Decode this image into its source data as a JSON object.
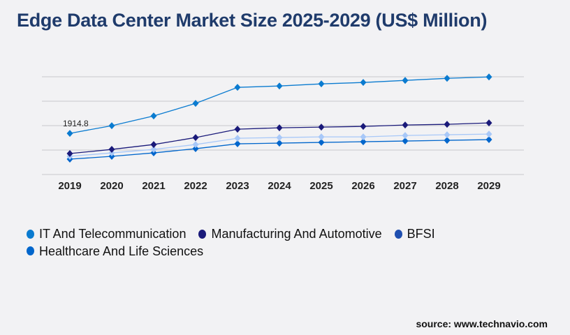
{
  "title": "Edge Data Center Market Size 2025-2029 (US$ Million)",
  "source": "source: www.technavio.com",
  "chart_data": {
    "type": "line",
    "title": "Edge Data Center Market Size 2025-2029 (US$ Million)",
    "x": [
      "2019",
      "2020",
      "2021",
      "2022",
      "2023",
      "2024",
      "2025",
      "2026",
      "2027",
      "2028",
      "2029"
    ],
    "ylim": [
      0,
      4550
    ],
    "grid": true,
    "legend_placement": "bottom",
    "annotations": [
      {
        "series": "IT And Telecommunication",
        "x": "2019",
        "label": "1914.8"
      }
    ],
    "series": [
      {
        "name": "IT And Telecommunication",
        "color": "#0a7bd0",
        "values": [
          1914.8,
          2272,
          2726,
          3310,
          4057,
          4121,
          4219,
          4284,
          4381,
          4478,
          4543
        ]
      },
      {
        "name": "Manufacturing And Automotive",
        "color": "#1a1a7a",
        "values": [
          974,
          1168,
          1395,
          1720,
          2109,
          2174,
          2207,
          2239,
          2304,
          2336,
          2401
        ]
      },
      {
        "name": "BFSI",
        "color": "#a8c8f8",
        "legend_color": "#1f4fb0",
        "values": [
          844,
          1006,
          1168,
          1395,
          1687,
          1720,
          1752,
          1752,
          1817,
          1850,
          1882
        ]
      },
      {
        "name": "Healthcare And Life Sciences",
        "color": "#0066cc",
        "values": [
          714,
          844,
          1006,
          1201,
          1428,
          1460,
          1493,
          1525,
          1558,
          1590,
          1623
        ]
      }
    ]
  }
}
